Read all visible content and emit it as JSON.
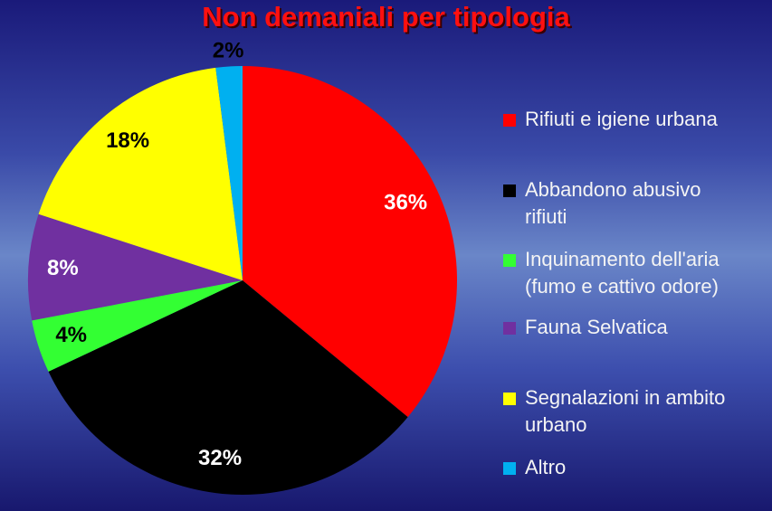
{
  "chart_data": {
    "type": "pie",
    "title": "Non demaniali per tipologia",
    "categories": [
      "Rifiuti e igiene urbana",
      "Abbandono abusivo rifiuti",
      "Inquinamento dell'aria (fumo e cattivo odore)",
      "Fauna Selvatica",
      "Segnalazioni in ambito urbano",
      "Altro"
    ],
    "values": [
      36,
      32,
      4,
      8,
      18,
      2
    ],
    "value_labels": [
      "36%",
      "32%",
      "4%",
      "8%",
      "18%",
      "2%"
    ],
    "colors": [
      "#ff0000",
      "#000000",
      "#33ff33",
      "#7030a0",
      "#ffff00",
      "#00b0f0"
    ],
    "legend": "right"
  }
}
